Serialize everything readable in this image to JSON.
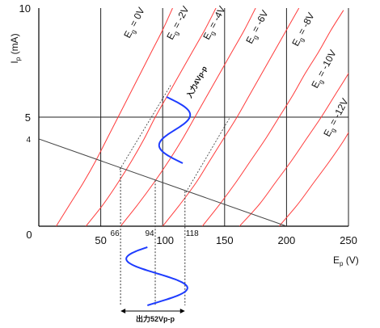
{
  "chart_data": {
    "type": "line",
    "title": "",
    "xlabel": {
      "main": "E",
      "sub": "p",
      "unit": "(V)"
    },
    "ylabel": {
      "main": "I",
      "sub": "p",
      "unit": "(mA)"
    },
    "xlim": [
      0,
      250
    ],
    "ylim": [
      0,
      10
    ],
    "xticks": [
      {
        "value": 0,
        "label": "0"
      },
      {
        "value": 50,
        "label": "50"
      },
      {
        "value": 100,
        "label": "100"
      },
      {
        "value": 150,
        "label": "150"
      },
      {
        "value": 200,
        "label": "200"
      },
      {
        "value": 250,
        "label": "250"
      }
    ],
    "yticks": [
      {
        "value": 5,
        "label": "5"
      },
      {
        "value": 10,
        "label": "10"
      }
    ],
    "grid": {
      "x": [
        50,
        100,
        150,
        200,
        250
      ],
      "y": [
        5
      ]
    },
    "series": [
      {
        "name": "Eg = 0V",
        "sub": "g",
        "text": " = 0V",
        "values": [
          [
            14,
            0
          ],
          [
            25,
            1
          ],
          [
            36,
            2
          ],
          [
            46,
            3
          ],
          [
            55,
            4
          ],
          [
            64,
            5
          ],
          [
            73,
            6
          ],
          [
            82,
            7
          ],
          [
            91,
            8
          ],
          [
            100,
            9
          ],
          [
            108,
            10
          ]
        ]
      },
      {
        "name": "Eg = -2V",
        "sub": "g",
        "text": " = -2V",
        "values": [
          [
            38,
            0
          ],
          [
            52,
            1
          ],
          [
            64,
            2
          ],
          [
            75,
            3
          ],
          [
            85,
            4
          ],
          [
            94,
            5
          ],
          [
            104,
            6
          ],
          [
            114,
            7
          ],
          [
            124,
            8
          ],
          [
            134,
            9
          ],
          [
            143,
            10
          ]
        ]
      },
      {
        "name": "Eg = -4V",
        "sub": "g",
        "text": " = -4V",
        "values": [
          [
            66,
            0
          ],
          [
            80,
            1
          ],
          [
            93,
            2
          ],
          [
            105,
            3
          ],
          [
            116,
            4
          ],
          [
            126,
            5
          ],
          [
            136,
            6
          ],
          [
            146,
            7
          ],
          [
            156,
            8
          ],
          [
            166,
            9
          ],
          [
            175,
            10
          ]
        ]
      },
      {
        "name": "Eg = -6V",
        "sub": "g",
        "text": " = -6V",
        "values": [
          [
            100,
            0
          ],
          [
            114,
            1
          ],
          [
            127,
            2
          ],
          [
            138,
            3
          ],
          [
            149,
            4
          ],
          [
            160,
            5
          ],
          [
            170,
            6
          ],
          [
            180,
            7
          ],
          [
            190,
            8
          ],
          [
            200,
            9
          ],
          [
            210,
            10
          ]
        ]
      },
      {
        "name": "Eg = -8V",
        "sub": "g",
        "text": " = -8V",
        "values": [
          [
            132,
            0
          ],
          [
            146,
            1
          ],
          [
            159,
            2
          ],
          [
            171,
            3
          ],
          [
            183,
            4
          ],
          [
            194,
            5
          ],
          [
            205,
            6
          ],
          [
            215,
            7
          ],
          [
            226,
            8
          ],
          [
            236,
            9
          ],
          [
            246,
            9.9
          ]
        ]
      },
      {
        "name": "Eg = -10V",
        "sub": "g",
        "text": " = -10V",
        "values": [
          [
            162,
            0
          ],
          [
            178,
            1
          ],
          [
            191,
            2
          ],
          [
            204,
            3
          ],
          [
            216,
            4
          ],
          [
            228,
            5
          ],
          [
            239,
            6
          ],
          [
            250,
            7
          ],
          [
            259,
            7.9
          ]
        ]
      },
      {
        "name": "Eg = -12V",
        "sub": "g",
        "text": " = -12V",
        "values": [
          [
            194,
            0
          ],
          [
            209,
            1
          ],
          [
            222,
            2
          ],
          [
            235,
            3
          ],
          [
            247,
            4
          ],
          [
            258,
            5.1
          ]
        ]
      }
    ],
    "load_line": {
      "from": [
        0,
        4
      ],
      "to": [
        200,
        0
      ]
    },
    "operating_points": [
      {
        "value": 66,
        "label": "66",
        "ip": 2.7
      },
      {
        "value": 94,
        "label": "94",
        "ip": 2.1
      },
      {
        "value": 118,
        "label": "118",
        "ip": 1.6
      }
    ],
    "y_annotation": {
      "value": 4,
      "label": "4"
    },
    "input_signal": {
      "label": "入力4Vp-p",
      "amplitude_v": 4
    },
    "output_signal": {
      "label": "出力52Vp-p",
      "amplitude_v": 52
    },
    "colors": {
      "curves": "#ff3b3b",
      "signal": "#1e3cff",
      "grid": "#222222",
      "load_line": "#444444"
    }
  }
}
